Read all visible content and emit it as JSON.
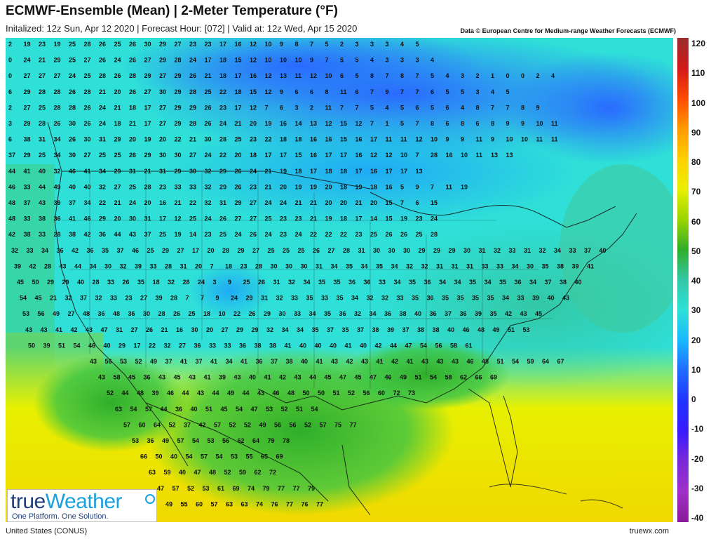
{
  "header": {
    "title": "ECMWF-Ensemble (Mean)  |  2-Meter Temperature (°F)",
    "subtitle": "Initalized: 12z Sun, Apr 12 2020  |  Forecast Hour: [072]  |  Valid at: 12z Wed, Apr 15 2020",
    "credit": "Data © European Centre for Medium-range Weather Forecasts (ECMWF)"
  },
  "colorbar": {
    "labels": [
      "120",
      "110",
      "100",
      "90",
      "80",
      "70",
      "60",
      "50",
      "40",
      "30",
      "20",
      "10",
      "0",
      "-10",
      "-20",
      "-30",
      "-40"
    ],
    "colors": [
      "#9b2d2d",
      "#d11a1a",
      "#ff4a00",
      "#ff9a00",
      "#ffd000",
      "#e8f000",
      "#9bd400",
      "#2fae2a",
      "#33c8a6",
      "#2fe0d8",
      "#19b8ff",
      "#1f6bff",
      "#2233ff",
      "#3a1aff",
      "#7a2ad8",
      "#a030c8",
      "#8a1a9a"
    ]
  },
  "map": {
    "region_name": "United States (CONUS)",
    "rows": [
      "2 19 23 19 25 28 26 25 26 30 29 27 23 23 17 16 12 10 9 8 7 5 2 3 3 3 4 5",
      "0 24 21 29 25 27 26 24 26 27 29 28 24 17 18 15 12 10 10 10 9 7 5 5 4 3 3 3 4",
      "0 27 27 27 24 25 28 26 28 29 27 29 26 21 18 17 16 12 13 11 12 10 6 5 8 7 8 7 5 4 3 2 1 0 0 2 4",
      "6 29 28 28 26 28 21 20 26 27 30 29 28 25 22 18 15 12 9 6 6 8 11 6 7 9 7 7 6 5 5 3 4 5",
      "2 27 25 28 28 26 24 21 18 17 27 29 29 26 23 17 12 7 6 3 2 11 7 7 5 4 5 6 5 6 4 8 7 7 8 9",
      "3 29 28 26 30 26 24 18 21 17 27 29 28 26 24 21 20 19 16 14 13 12 15 12 7 1 5 7 8 6 8 6 8 9 9 10 11",
      "6 38 31 34 26 30 31 29 20 19 20 22 21 30 28 25 23 22 18 18 16 16 15 16 17 11 11 12 10 9 9 11 9 10 10 11 11",
      "37 29 25 34 30 27 25 25 26 29 30 30 27 24 22 20 18 17 17 15 16 17 17 16 12 12 10 7 28 16 10 11 13 13",
      "44 41 40 32 46 41 34 29 31 21 31 29 30 32 29 26 24 21 19 18 17 18 18 17 16 17 17 13",
      "46 33 44 49 40 40 32 27 25 28 23 33 33 32 29 26 23 21 20 19 19 20 18 19 18 16 5 9 7 11 19",
      "48 37 43 39 37 34 22 21 24 20 16 21 22 32 31 29 27 24 24 21 21 20 20 21 20 15 7 6 15",
      "48 33 38 36 41 46 29 20 30 31 17 12 25 24 26 27 27 25 23 23 21 19 18 17 14 15 19 23 24",
      "42 38 33 28 38 42 36 44 43 37 25 19 14 23 25 24 26 24 23 24 22 22 22 23 25 26 26 25 28",
      "32 33 34 36 42 36 35 37 46 25 29 27 17 20 28 29 27 25 25 25 26 27 28 31 30 30 30 29 29 29 30 31 32 33 31 32 34 33 37 40",
      "39 42 28 43 44 34 30 32 39 33 28 31 20 7 18 23 28 30 30 30 31 34 35 34 35 34 32 32 31 31 31 33 33 34 30 35 38 39 41",
      "45 50 29 29 40 28 33 26 35 18 32 28 24 3 9 25 26 31 32 34 35 35 36 36 33 34 35 36 34 34 35 34 35 36 34 37 38 40",
      "54 45 21 32 37 32 33 23 27 39 28 7 7 9 24 29 31 32 33 35 33 35 34 32 32 33 35 36 35 35 35 35 34 33 39 40 43",
      "53 56 49 27 48 36 48 36 30 28 26 25 18 10 22 26 29 30 33 34 35 36 32 34 36 38 40 36 37 36 39 35 42 43 45",
      "43 43 41 42 43 47 31 27 26 21 16 30 20 27 29 29 32 34 34 35 37 35 37 38 39 37 38 38 40 46 48 49 51 53",
      "50 39 51 54 46 40 29 17 22 32 27 36 33 33 36 38 38 41 40 40 40 41 40 42 44 47 54 56 58 61",
      "43 56 53 52 49 37 41 37 41 34 41 36 37 38 40 41 43 42 43 41 42 41 43 43 43 46 48 51 54 59 64 67",
      "43 58 45 36 43 45 43 41 39 43 40 41 42 43 44 45 47 45 47 46 49 51 54 58 62 66 69",
      "52 44 48 39 46 44 43 44 49 44 43 46 48 50 50 51 52 56 60 72 73",
      "63 54 57 44 36 40 51 45 54 47 53 52 51 54",
      "57 60 64 52 37 42 57 52 52 49 56 56 52 57 75 77",
      "53 36 49 57 54 53 56 62 64 79 78",
      "66 50 40 54 57 54 53 55 65 69",
      "63 59 40 47 48 52 59 62 72",
      "47 57 52 53 61 69 74 79 77 77 79",
      "49 55 60 57 63 63 74 76 77 76 77"
    ]
  }
}
